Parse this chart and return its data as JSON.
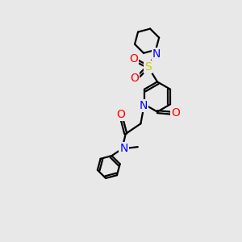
{
  "background_color": "#e8e8e8",
  "atom_colors": {
    "N": "#0000ff",
    "O": "#ff0000",
    "S": "#cccc00"
  },
  "figsize": [
    3.0,
    3.0
  ],
  "dpi": 100,
  "lw": 1.6,
  "fontsize": 9.5
}
